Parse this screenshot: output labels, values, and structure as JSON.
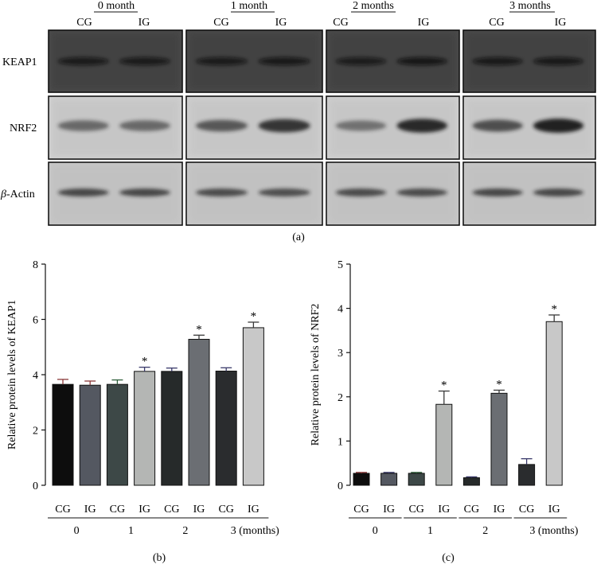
{
  "blot": {
    "time_headers": [
      "0 month",
      "1 month",
      "2 months",
      "3 months"
    ],
    "lane_labels": [
      "CG",
      "IG"
    ],
    "row_labels": {
      "keap1": "KEAP1",
      "nrf2": "NRF2",
      "actin_greek": "β",
      "actin_rest": "-Actin"
    },
    "band_intensity": {
      "keap1": [
        [
          0.75,
          0.75
        ],
        [
          0.75,
          0.78
        ],
        [
          0.72,
          0.82
        ],
        [
          0.78,
          0.78
        ]
      ],
      "nrf2": [
        [
          0.55,
          0.55
        ],
        [
          0.65,
          0.85
        ],
        [
          0.5,
          0.92
        ],
        [
          0.7,
          0.97
        ]
      ],
      "actin": [
        [
          0.75,
          0.75
        ],
        [
          0.72,
          0.7
        ],
        [
          0.72,
          0.72
        ],
        [
          0.75,
          0.75
        ]
      ]
    },
    "panel_label": "(a)"
  },
  "chart_data": [
    {
      "type": "bar",
      "panel_label": "(b)",
      "ylabel": "Relative protein levels of KEAP1",
      "ylim": [
        0,
        8
      ],
      "yticks": [
        0,
        2,
        4,
        6,
        8
      ],
      "categories": [
        "CG",
        "IG",
        "CG",
        "IG",
        "CG",
        "IG",
        "CG",
        "IG"
      ],
      "groups": [
        "0",
        "1",
        "2",
        "3 (months)"
      ],
      "values": [
        3.65,
        3.62,
        3.65,
        4.12,
        4.12,
        5.28,
        4.13,
        5.7
      ],
      "errors": [
        0.18,
        0.15,
        0.16,
        0.15,
        0.12,
        0.15,
        0.12,
        0.2
      ],
      "significant": [
        false,
        false,
        false,
        true,
        false,
        true,
        false,
        true
      ],
      "sig_symbol": "*",
      "bar_colors": [
        "#0d0d0d",
        "#545861",
        "#3d4847",
        "#b4b6b4",
        "#262a2a",
        "#6b6e73",
        "#2a2c2e",
        "#c8c8c8"
      ],
      "errbar_colors": [
        "#8b3a3a",
        "#8b3a3a",
        "#2e5e3a",
        "#3a3a6b",
        "#3a3a6b",
        "#3a3a3a",
        "#3a3a6b",
        "#3a3a3a"
      ]
    },
    {
      "type": "bar",
      "panel_label": "(c)",
      "ylabel": "Relative protein levels of NRF2",
      "ylim": [
        0,
        5
      ],
      "yticks": [
        0,
        1,
        2,
        3,
        4,
        5
      ],
      "categories": [
        "CG",
        "IG",
        "CG",
        "IG",
        "CG",
        "IG",
        "CG",
        "IG"
      ],
      "groups": [
        "0",
        "1",
        "2",
        "3 (months)"
      ],
      "values": [
        0.27,
        0.27,
        0.27,
        1.83,
        0.17,
        2.08,
        0.47,
        3.7
      ],
      "errors": [
        0.02,
        0.02,
        0.02,
        0.3,
        0.02,
        0.07,
        0.13,
        0.15
      ],
      "significant": [
        false,
        false,
        false,
        true,
        false,
        true,
        false,
        true
      ],
      "sig_symbol": "*",
      "bar_colors": [
        "#0d0d0d",
        "#545861",
        "#3d4847",
        "#b4b6b4",
        "#262a2a",
        "#6b6e73",
        "#2a2c2e",
        "#c8c8c8"
      ],
      "errbar_colors": [
        "#8b3a3a",
        "#3a3a6b",
        "#2e5e3a",
        "#3a3a3a",
        "#3a3a6b",
        "#3a3a3a",
        "#3a3a6b",
        "#3a3a3a"
      ]
    }
  ]
}
